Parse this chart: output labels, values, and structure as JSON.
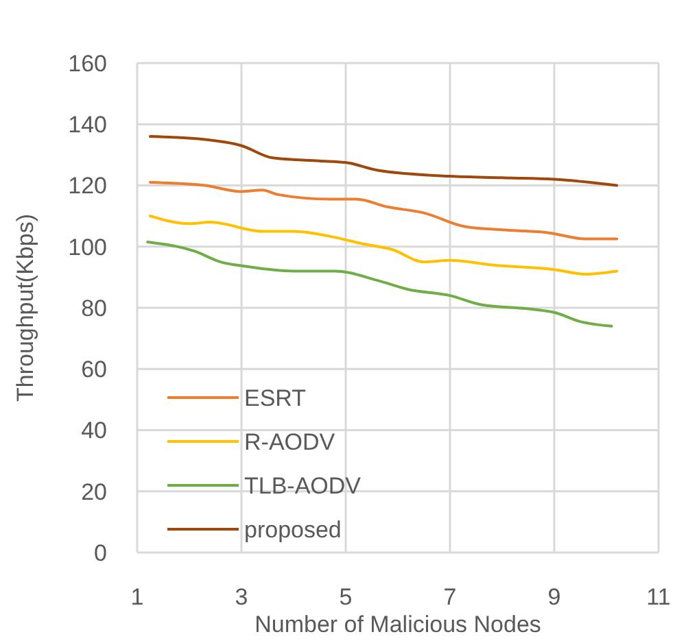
{
  "chart_data": {
    "type": "line",
    "xlabel": "Number of Malicious Nodes",
    "ylabel": "Throughput(Kbps)",
    "xlim": [
      1,
      11
    ],
    "xticks": [
      1,
      3,
      5,
      7,
      9,
      11
    ],
    "ylim": [
      0,
      160
    ],
    "yticks": [
      0,
      20,
      40,
      60,
      80,
      100,
      120,
      140,
      160
    ],
    "grid": true,
    "legend": "bottom left",
    "marker": "none",
    "series": [
      {
        "name": "ESRT",
        "color": "#ed7d31",
        "x": [
          1.25,
          2.3,
          3,
          3.4,
          3.7,
          4.7,
          5.2,
          5.8,
          6.5,
          7.3,
          8,
          8.9,
          9.6,
          10.2
        ],
        "values": [
          121,
          120,
          118,
          118.5,
          117,
          115.5,
          115.5,
          113,
          111,
          106.5,
          105.5,
          104.5,
          102.5,
          102.5
        ]
      },
      {
        "name": "R-AODV",
        "color": "#ffc000",
        "x": [
          1.25,
          2,
          2.4,
          3.4,
          4,
          4.8,
          5.3,
          5.9,
          6.5,
          7,
          7.8,
          9,
          9.6,
          10.2
        ],
        "values": [
          110,
          107.5,
          108,
          105,
          105,
          103,
          101,
          99,
          95,
          95.5,
          94,
          92.5,
          91,
          92
        ]
      },
      {
        "name": "TLB-AODV",
        "color": "#70ad47",
        "x": [
          1.2,
          2.1,
          2.6,
          3.1,
          4,
          4.8,
          5.6,
          6.2,
          7,
          7.6,
          8.6,
          9,
          9.5,
          10.1
        ],
        "values": [
          101.5,
          98.5,
          95,
          93.5,
          92,
          92,
          89,
          86,
          84,
          81,
          79.5,
          78.5,
          75.5,
          74
        ]
      },
      {
        "name": "proposed",
        "color": "#9e480e",
        "x": [
          1.25,
          2.3,
          3,
          3.6,
          4.5,
          5,
          5.6,
          7,
          8,
          9,
          10.2
        ],
        "values": [
          136,
          135,
          133,
          129,
          128,
          127.5,
          125,
          123,
          122.5,
          122,
          120
        ]
      }
    ]
  }
}
